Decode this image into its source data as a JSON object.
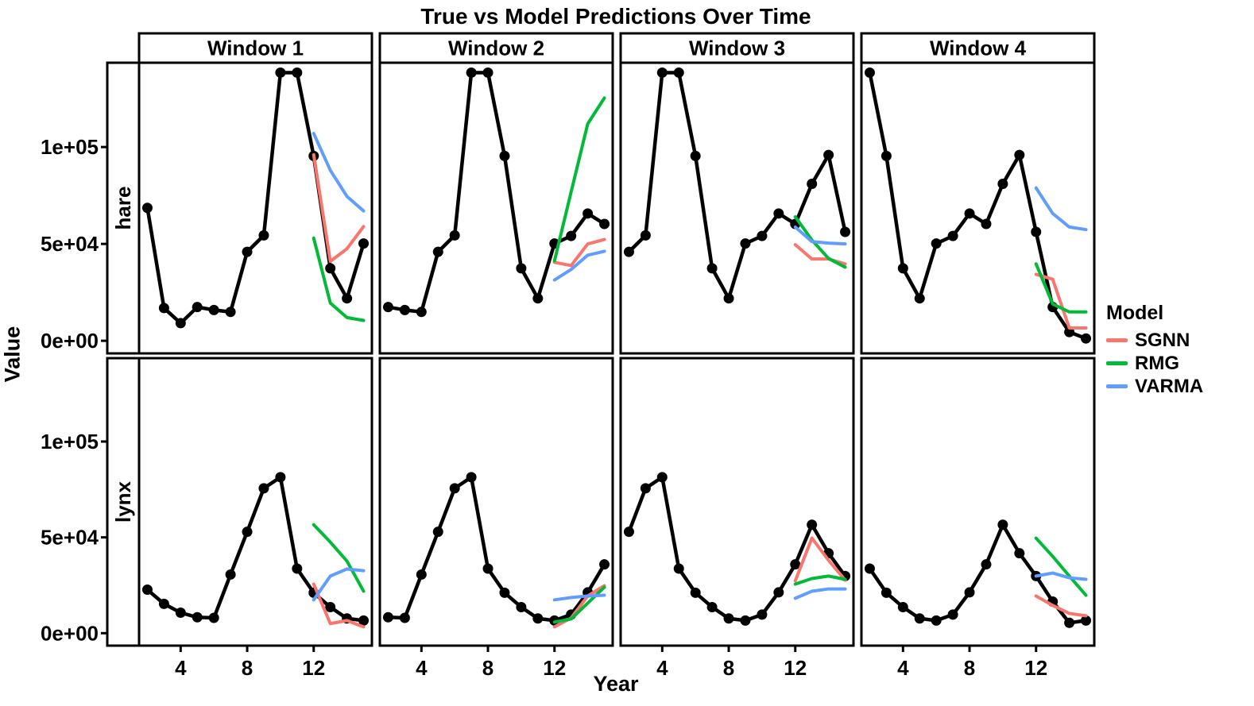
{
  "title": "True vs Model Predictions Over Time",
  "y_axis": {
    "title": "Value",
    "tick_labels": [
      "1e+05",
      "5e+04",
      "0e+00"
    ],
    "tick_values": [
      100000,
      50000,
      0
    ]
  },
  "x_axis": {
    "title": "Year",
    "tick_labels": [
      "4",
      "8",
      "12"
    ],
    "tick_values": [
      4,
      8,
      12
    ]
  },
  "facets": {
    "col_labels": [
      "Window 1",
      "Window 2",
      "Window 3",
      "Window 4"
    ],
    "row_labels": [
      "hare",
      "lynx"
    ]
  },
  "legend": {
    "title": "Model",
    "items": [
      {
        "label": "SGNN",
        "color": "#F8766D"
      },
      {
        "label": "RMG",
        "color": "#00BA38"
      },
      {
        "label": "VARMA",
        "color": "#619CFF"
      }
    ]
  },
  "chart_data": {
    "type": "line",
    "title": "True vs Model Predictions Over Time",
    "xlabel": "Year",
    "ylabel": "Value",
    "x_range": [
      1.5,
      15.5
    ],
    "y_range": [
      -6500,
      143500
    ],
    "grid": false,
    "legend_position": "right",
    "x_years_true": [
      2,
      3,
      4,
      5,
      6,
      7,
      8,
      9,
      10,
      11,
      12,
      13,
      14,
      15
    ],
    "x_years_pred": [
      12,
      13,
      14,
      15
    ],
    "series_colors": {
      "true": "#000000",
      "SGNN": "#F8766D",
      "RMG": "#00BA38",
      "VARMA": "#619CFF"
    },
    "panels": [
      {
        "row": "hare",
        "col": "Window 1",
        "true": [
          68600,
          16900,
          9100,
          17400,
          15900,
          14900,
          45900,
          54400,
          138400,
          138400,
          95400,
          37400,
          21900,
          50200
        ],
        "SGNN": [
          96000,
          41000,
          47500,
          59000
        ],
        "RMG": [
          53000,
          19500,
          12000,
          10500
        ],
        "VARMA": [
          107000,
          88000,
          74500,
          67000
        ]
      },
      {
        "row": "hare",
        "col": "Window 2",
        "true": [
          17400,
          15900,
          14900,
          45900,
          54400,
          138400,
          138400,
          95400,
          37400,
          21900,
          50200,
          54100,
          65700,
          60300
        ],
        "SGNN": [
          40500,
          38800,
          50000,
          52300
        ],
        "RMG": [
          41300,
          76800,
          112000,
          125300
        ],
        "VARMA": [
          31400,
          36800,
          44200,
          46200
        ]
      },
      {
        "row": "hare",
        "col": "Window 3",
        "true": [
          45900,
          54400,
          138400,
          138400,
          95400,
          37400,
          21900,
          50200,
          54100,
          65700,
          60300,
          81000,
          95900,
          56200
        ],
        "SGNN": [
          49600,
          42200,
          42200,
          39700
        ],
        "RMG": [
          64000,
          52000,
          42500,
          38000
        ],
        "VARMA": [
          58700,
          51200,
          50400,
          50000
        ]
      },
      {
        "row": "hare",
        "col": "Window 4",
        "true": [
          138400,
          95400,
          37400,
          21900,
          50200,
          54100,
          65700,
          60300,
          81000,
          95900,
          56200,
          17400,
          4500,
          1200
        ],
        "SGNN": [
          34300,
          31800,
          6600,
          6600
        ],
        "RMG": [
          39700,
          19000,
          14900,
          14900
        ],
        "VARMA": [
          78900,
          65700,
          58700,
          57400
        ]
      },
      {
        "row": "lynx",
        "col": "Window 1",
        "true": [
          22700,
          15300,
          10700,
          8300,
          8000,
          30600,
          52900,
          75600,
          81400,
          33700,
          21100,
          13600,
          7700,
          6600
        ],
        "SGNN": [
          25600,
          5000,
          6600,
          3300
        ],
        "RMG": [
          56600,
          47500,
          37600,
          21900
        ],
        "VARMA": [
          17400,
          29800,
          33500,
          32600
        ]
      },
      {
        "row": "lynx",
        "col": "Window 2",
        "true": [
          8300,
          8000,
          30600,
          52900,
          75600,
          81400,
          33700,
          21100,
          13600,
          7700,
          6600,
          9700,
          21300,
          35900
        ],
        "SGNN": [
          3300,
          7900,
          19400,
          24800
        ],
        "RMG": [
          5800,
          7400,
          15700,
          24000
        ],
        "VARMA": [
          17400,
          18600,
          19400,
          19800
        ]
      },
      {
        "row": "lynx",
        "col": "Window 3",
        "true": [
          52900,
          75600,
          81400,
          33700,
          21100,
          13600,
          7700,
          6600,
          9700,
          21300,
          35900,
          56600,
          41700,
          29800
        ],
        "SGNN": [
          27300,
          49600,
          38000,
          27700
        ],
        "RMG": [
          25600,
          28500,
          29800,
          28100
        ],
        "VARMA": [
          18200,
          21900,
          23100,
          23100
        ]
      },
      {
        "row": "lynx",
        "col": "Window 4",
        "true": [
          33700,
          21100,
          13600,
          7700,
          6600,
          9700,
          21300,
          35900,
          56600,
          41700,
          29800,
          16500,
          5400,
          6600
        ],
        "SGNN": [
          19400,
          14500,
          10300,
          9100
        ],
        "RMG": [
          49600,
          40100,
          29800,
          19800
        ],
        "VARMA": [
          29800,
          31400,
          28900,
          28100
        ]
      }
    ]
  }
}
